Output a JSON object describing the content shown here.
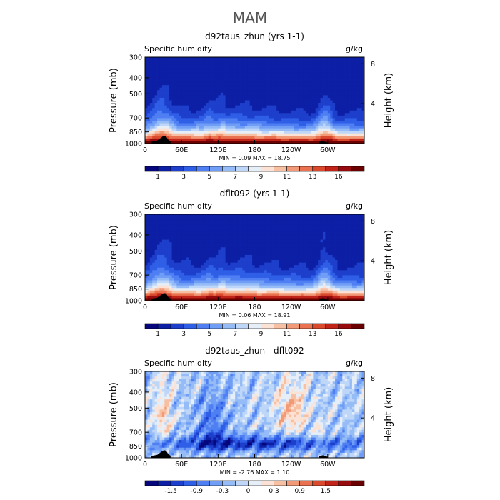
{
  "figure": {
    "title": "MAM"
  },
  "chart_data": [
    {
      "type": "heatmap",
      "title": "d92taus_zhun (yrs 1-1)",
      "left_label": "Specific humidity",
      "units": "g/kg",
      "ylabel": "Pressure (mb)",
      "ylabel_right": "Height (km)",
      "y_ticks": [
        "300",
        "400",
        "500",
        "700",
        "850",
        "1000"
      ],
      "y_tick_values": [
        300,
        400,
        500,
        700,
        850,
        1000
      ],
      "right_ticks": [
        "8",
        "4"
      ],
      "right_tick_values": [
        8,
        4
      ],
      "x_ticks": [
        "0",
        "60E",
        "120E",
        "180",
        "120W",
        "60W"
      ],
      "x_tick_values": [
        0,
        60,
        120,
        180,
        240,
        300
      ],
      "xlim": [
        0,
        360
      ],
      "ylim": [
        1000,
        300
      ],
      "stats": "MIN =    0.09   MAX =   18.75",
      "min": 0.09,
      "max": 18.75,
      "colorbar_labels": [
        "1",
        "3",
        "5",
        "7",
        "9",
        "11",
        "13",
        "16"
      ],
      "colorbar_label_positions": [
        1,
        3,
        5,
        7,
        9,
        11,
        13,
        15
      ],
      "colorbar_levels": 16,
      "colors": [
        "#07077d",
        "#0c1fa5",
        "#1d3fcb",
        "#2f5fe6",
        "#4f7ff3",
        "#709ef6",
        "#95bcf7",
        "#bed6f8",
        "#e6eef8",
        "#fbe2d4",
        "#f7c0a3",
        "#f29a78",
        "#ea7250",
        "#dc4a2e",
        "#c2241a",
        "#970a0e",
        "#6a0000"
      ]
    },
    {
      "type": "heatmap",
      "title": "dflt092 (yrs 1-1)",
      "left_label": "Specific humidity",
      "units": "g/kg",
      "ylabel": "Pressure (mb)",
      "ylabel_right": "Height (km)",
      "y_ticks": [
        "300",
        "400",
        "500",
        "700",
        "850",
        "1000"
      ],
      "y_tick_values": [
        300,
        400,
        500,
        700,
        850,
        1000
      ],
      "right_ticks": [
        "8",
        "4"
      ],
      "right_tick_values": [
        8,
        4
      ],
      "x_ticks": [
        "0",
        "60E",
        "120E",
        "180",
        "120W",
        "60W"
      ],
      "x_tick_values": [
        0,
        60,
        120,
        180,
        240,
        300
      ],
      "xlim": [
        0,
        360
      ],
      "ylim": [
        1000,
        300
      ],
      "stats": "MIN =    0.06   MAX =   18.91",
      "min": 0.06,
      "max": 18.91,
      "colorbar_labels": [
        "1",
        "3",
        "5",
        "7",
        "9",
        "11",
        "13",
        "16"
      ],
      "colorbar_label_positions": [
        1,
        3,
        5,
        7,
        9,
        11,
        13,
        15
      ],
      "colorbar_levels": 16,
      "colors": [
        "#07077d",
        "#0c1fa5",
        "#1d3fcb",
        "#2f5fe6",
        "#4f7ff3",
        "#709ef6",
        "#95bcf7",
        "#bed6f8",
        "#e6eef8",
        "#fbe2d4",
        "#f7c0a3",
        "#f29a78",
        "#ea7250",
        "#dc4a2e",
        "#c2241a",
        "#970a0e",
        "#6a0000"
      ]
    },
    {
      "type": "heatmap",
      "title": "d92taus_zhun - dflt092",
      "left_label": "Specific humidity",
      "units": "g/kg",
      "ylabel": "Pressure (mb)",
      "ylabel_right": "Height (km)",
      "y_ticks": [
        "300",
        "400",
        "500",
        "700",
        "850",
        "1000"
      ],
      "y_tick_values": [
        300,
        400,
        500,
        700,
        850,
        1000
      ],
      "right_ticks": [
        "8",
        "4"
      ],
      "right_tick_values": [
        8,
        4
      ],
      "x_ticks": [
        "0",
        "60E",
        "120E",
        "180",
        "120W",
        "60W"
      ],
      "x_tick_values": [
        0,
        60,
        120,
        180,
        240,
        300
      ],
      "xlim": [
        0,
        360
      ],
      "ylim": [
        1000,
        300
      ],
      "stats": "MIN =   -2.76   MAX =    1.10",
      "min": -2.76,
      "max": 1.1,
      "colorbar_labels": [
        "-1.5",
        "-0.9",
        "-0.3",
        "0",
        "0.3",
        "0.9",
        "1.5"
      ],
      "colorbar_label_positions": [
        2,
        4,
        6,
        8,
        10,
        12,
        14
      ],
      "colorbar_levels": 16,
      "colors": [
        "#07077d",
        "#0c1fa5",
        "#1d3fcb",
        "#2f5fe6",
        "#4f7ff3",
        "#709ef6",
        "#95bcf7",
        "#bed6f8",
        "#e6eef8",
        "#fbe2d4",
        "#f7c0a3",
        "#f29a78",
        "#ea7250",
        "#dc4a2e",
        "#c2241a",
        "#970a0e",
        "#6a0000"
      ]
    }
  ]
}
